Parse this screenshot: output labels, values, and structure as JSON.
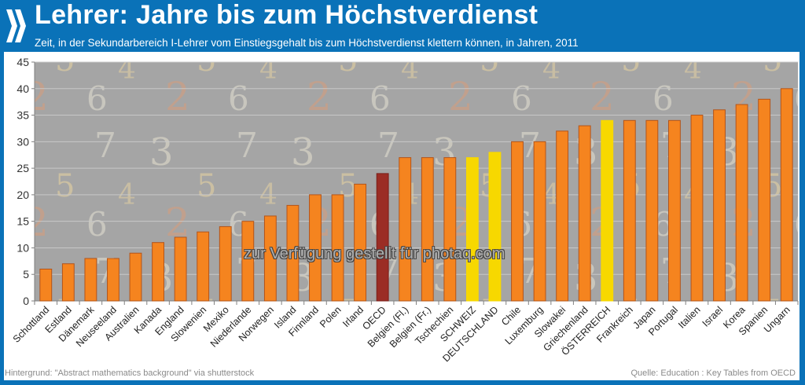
{
  "header": {
    "title": "Lehrer: Jahre bis zum Höchstverdienst",
    "subtitle": "Zeit, in der Sekundarbereich I-Lehrer vom Einstiegsgehalt bis zum Höchstverdienst klettern können, in Jahren, 2011",
    "logo_icon": "oecd-chevrons-icon"
  },
  "footer": {
    "background_credit": "Hintergrund: \"Abstract mathematics background\" via shutterstock",
    "source": "Quelle: Education : Key Tables from OECD"
  },
  "watermark": "zur Verfügung gestellt für photaq.com",
  "colors": {
    "header_blue": "#0a72b8",
    "bar_default": "#f5841f",
    "bar_oecd": "#9b2d25",
    "bar_highlight": "#f7d800",
    "plot_background": "#a5a5a5"
  },
  "chart_data": {
    "type": "bar",
    "title": "Lehrer: Jahre bis zum Höchstverdienst",
    "subtitle": "Zeit, in der Sekundarbereich I-Lehrer vom Einstiegsgehalt bis zum Höchstverdienst klettern können, in Jahren, 2011",
    "xlabel": "",
    "ylabel": "",
    "ylim": [
      0,
      45
    ],
    "yticks": [
      0,
      5,
      10,
      15,
      20,
      25,
      30,
      35,
      40,
      45
    ],
    "grid": true,
    "legend": "none",
    "categories": [
      "Schottland",
      "Estland",
      "Dänemark",
      "Neuseeland",
      "Australien",
      "Kanada",
      "England",
      "Slowenien",
      "Mexiko",
      "Niederlande",
      "Norwegen",
      "Island",
      "Finnland",
      "Polen",
      "Irland",
      "OECD",
      "Belgien (Fl.)",
      "Belgien (Fr.)",
      "Tschechien",
      "SCHWEIZ",
      "DEUTSCHLAND",
      "Chile",
      "Luxemburg",
      "Slowakei",
      "Griechenland",
      "ÖSTERREICH",
      "Frankreich",
      "Japan",
      "Portugal",
      "Italien",
      "Israel",
      "Korea",
      "Spanien",
      "Ungarn"
    ],
    "values": [
      6,
      7,
      8,
      8,
      9,
      11,
      12,
      13,
      14,
      15,
      16,
      18,
      20,
      20,
      22,
      24,
      27,
      27,
      27,
      27,
      28,
      30,
      30,
      32,
      33,
      34,
      34,
      34,
      34,
      35,
      36,
      37,
      38,
      40
    ],
    "highlight": {
      "OECD": "oecd",
      "SCHWEIZ": "highlight",
      "DEUTSCHLAND": "highlight",
      "ÖSTERREICH": "highlight"
    }
  }
}
